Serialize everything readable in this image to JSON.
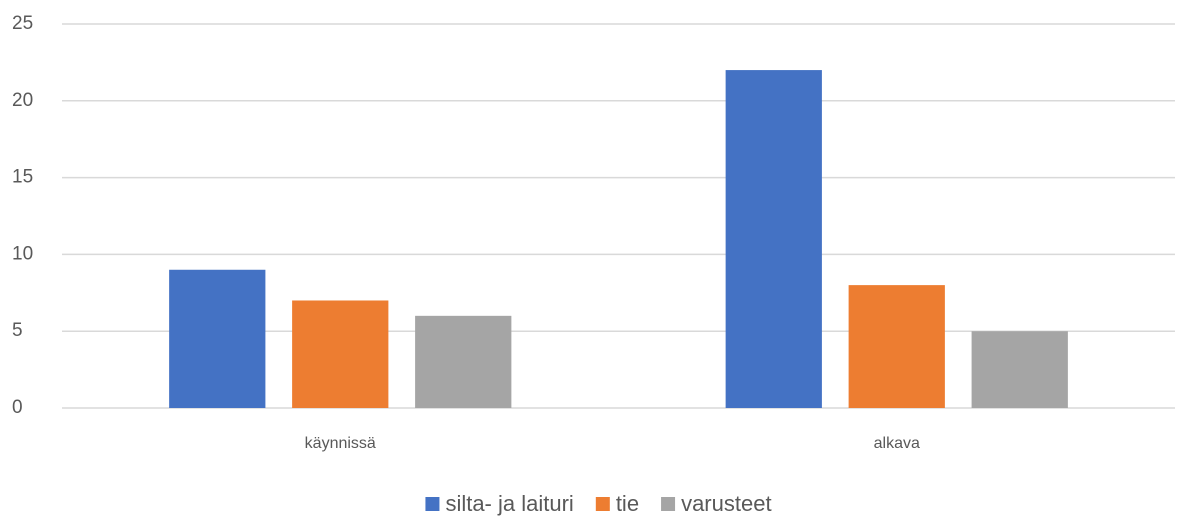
{
  "chart_data": {
    "type": "bar",
    "categories": [
      "käynnissä",
      "alkava"
    ],
    "series": [
      {
        "name": "silta- ja laituri",
        "color": "#4472c4",
        "values": [
          9,
          22
        ]
      },
      {
        "name": "tie",
        "color": "#ed7d31",
        "values": [
          7,
          8
        ]
      },
      {
        "name": "varusteet",
        "color": "#a5a5a5",
        "values": [
          6,
          5
        ]
      }
    ],
    "ylim": [
      0,
      25
    ],
    "yticks": [
      0,
      5,
      10,
      15,
      20,
      25
    ],
    "grid": true,
    "legend": "bottom"
  }
}
